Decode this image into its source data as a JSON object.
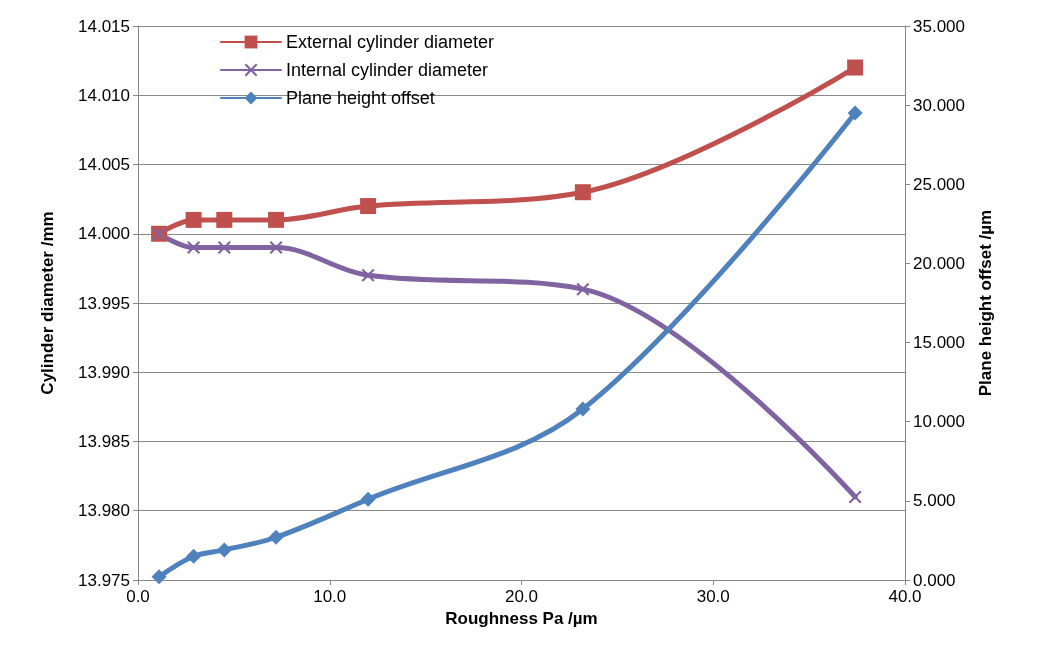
{
  "chart_data": {
    "type": "line",
    "xlabel": "Roughness Pa /µm",
    "ylabel": "Cylinder diameter /mm",
    "y2label": "Plane height offset /µm",
    "x": [
      1.1,
      2.9,
      4.5,
      7.2,
      12.0,
      23.2,
      37.4
    ],
    "series": [
      {
        "name": "External cylinder diameter",
        "color": "#c0504d",
        "marker": "square",
        "values": [
          14.0,
          14.001,
          14.001,
          14.001,
          14.002,
          14.003,
          14.012
        ]
      },
      {
        "name": "Internal cylinder diameter",
        "color": "#8064a2",
        "marker": "cross",
        "values": [
          14.0,
          13.999,
          13.999,
          13.999,
          13.997,
          13.996,
          13.981
        ]
      },
      {
        "name": "Plane height offset",
        "color": "#4f81bd",
        "marker": "diamond",
        "axis": "y2",
        "values": [
          0.2,
          1.5,
          1.9,
          2.7,
          5.1,
          10.8,
          29.5
        ]
      }
    ],
    "xlim": [
      0,
      40
    ],
    "xticks": [
      {
        "value": 0,
        "label": "0.0"
      },
      {
        "value": 10,
        "label": "10.0"
      },
      {
        "value": 20,
        "label": "20.0"
      },
      {
        "value": 30,
        "label": "30.0"
      },
      {
        "value": 40,
        "label": "40.0"
      }
    ],
    "ylim": [
      13.975,
      14.015
    ],
    "yticks": [
      {
        "value": 13.975,
        "label": "13.975"
      },
      {
        "value": 13.98,
        "label": "13.980"
      },
      {
        "value": 13.985,
        "label": "13.985"
      },
      {
        "value": 13.99,
        "label": "13.990"
      },
      {
        "value": 13.995,
        "label": "13.995"
      },
      {
        "value": 14.0,
        "label": "14.000"
      },
      {
        "value": 14.005,
        "label": "14.005"
      },
      {
        "value": 14.01,
        "label": "14.010"
      },
      {
        "value": 14.015,
        "label": "14.015"
      }
    ],
    "y2lim": [
      0,
      35
    ],
    "y2ticks": [
      {
        "value": 0,
        "label": "0.000"
      },
      {
        "value": 5,
        "label": "5.000"
      },
      {
        "value": 10,
        "label": "10.000"
      },
      {
        "value": 15,
        "label": "15.000"
      },
      {
        "value": 20,
        "label": "20.000"
      },
      {
        "value": 25,
        "label": "25.000"
      },
      {
        "value": 30,
        "label": "30.000"
      },
      {
        "value": 35,
        "label": "35.000"
      }
    ],
    "grid": "y",
    "legend": "top left",
    "line_style": "solid"
  }
}
